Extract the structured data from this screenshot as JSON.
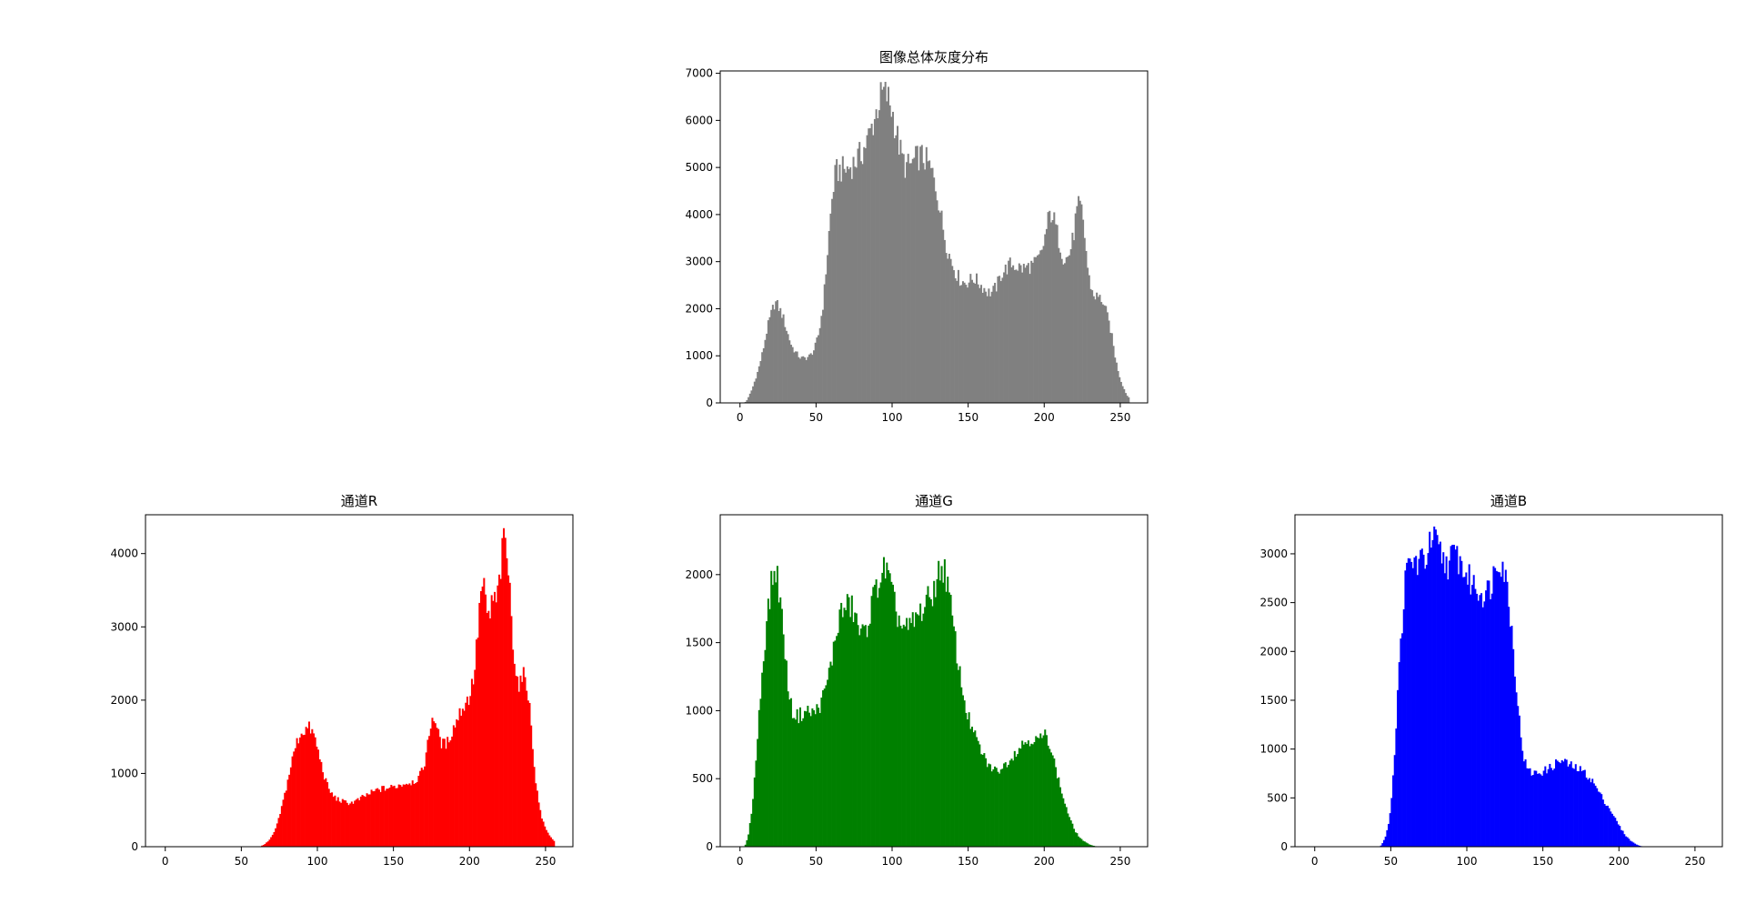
{
  "chart_data": [
    {
      "type": "bar",
      "title": "图像总体灰度分布",
      "xlabel": "",
      "ylabel": "",
      "color": "#808080",
      "xlim": [
        -13,
        268
      ],
      "ylim": [
        0,
        7050
      ],
      "xticks": [
        0,
        50,
        100,
        150,
        200,
        250
      ],
      "yticks": [
        0,
        1000,
        2000,
        3000,
        4000,
        5000,
        6000,
        7000
      ],
      "envelope": [
        [
          0,
          0
        ],
        [
          3,
          0
        ],
        [
          5,
          80
        ],
        [
          8,
          300
        ],
        [
          12,
          700
        ],
        [
          15,
          1100
        ],
        [
          18,
          1600
        ],
        [
          21,
          1950
        ],
        [
          23,
          2150
        ],
        [
          25,
          2050
        ],
        [
          28,
          1850
        ],
        [
          31,
          1500
        ],
        [
          34,
          1200
        ],
        [
          37,
          1050
        ],
        [
          40,
          950
        ],
        [
          43,
          950
        ],
        [
          46,
          1000
        ],
        [
          49,
          1150
        ],
        [
          52,
          1500
        ],
        [
          55,
          2200
        ],
        [
          57,
          3000
        ],
        [
          59,
          3800
        ],
        [
          61,
          4500
        ],
        [
          63,
          4900
        ],
        [
          66,
          4950
        ],
        [
          70,
          4950
        ],
        [
          75,
          5100
        ],
        [
          80,
          5300
        ],
        [
          84,
          5600
        ],
        [
          88,
          6000
        ],
        [
          91,
          6350
        ],
        [
          94,
          6600
        ],
        [
          97,
          6500
        ],
        [
          100,
          6200
        ],
        [
          103,
          5700
        ],
        [
          106,
          5250
        ],
        [
          109,
          5000
        ],
        [
          112,
          5050
        ],
        [
          115,
          5150
        ],
        [
          118,
          5250
        ],
        [
          121,
          5200
        ],
        [
          124,
          5050
        ],
        [
          127,
          4800
        ],
        [
          130,
          4400
        ],
        [
          133,
          3800
        ],
        [
          136,
          3300
        ],
        [
          139,
          3000
        ],
        [
          142,
          2750
        ],
        [
          145,
          2600
        ],
        [
          148,
          2550
        ],
        [
          151,
          2600
        ],
        [
          154,
          2650
        ],
        [
          157,
          2550
        ],
        [
          160,
          2450
        ],
        [
          163,
          2350
        ],
        [
          166,
          2350
        ],
        [
          169,
          2500
        ],
        [
          172,
          2750
        ],
        [
          175,
          2850
        ],
        [
          178,
          2950
        ],
        [
          182,
          2900
        ],
        [
          186,
          2850
        ],
        [
          190,
          2900
        ],
        [
          194,
          2950
        ],
        [
          198,
          3150
        ],
        [
          201,
          3600
        ],
        [
          203,
          3950
        ],
        [
          205,
          4050
        ],
        [
          207,
          3800
        ],
        [
          210,
          3400
        ],
        [
          213,
          3050
        ],
        [
          216,
          3100
        ],
        [
          219,
          3500
        ],
        [
          221,
          4000
        ],
        [
          223,
          4200
        ],
        [
          225,
          4000
        ],
        [
          227,
          3400
        ],
        [
          229,
          2700
        ],
        [
          232,
          2300
        ],
        [
          235,
          2250
        ],
        [
          238,
          2200
        ],
        [
          241,
          1900
        ],
        [
          244,
          1500
        ],
        [
          247,
          900
        ],
        [
          250,
          500
        ],
        [
          253,
          250
        ],
        [
          255,
          120
        ]
      ]
    },
    {
      "type": "bar",
      "title": "通道R",
      "xlabel": "",
      "ylabel": "",
      "color": "#ff0000",
      "xlim": [
        -13,
        268
      ],
      "ylim": [
        0,
        4530
      ],
      "xticks": [
        0,
        50,
        100,
        150,
        200,
        250
      ],
      "yticks": [
        0,
        1000,
        2000,
        3000,
        4000
      ],
      "envelope": [
        [
          0,
          0
        ],
        [
          62,
          0
        ],
        [
          65,
          30
        ],
        [
          68,
          80
        ],
        [
          71,
          170
        ],
        [
          74,
          330
        ],
        [
          77,
          580
        ],
        [
          80,
          850
        ],
        [
          83,
          1150
        ],
        [
          86,
          1400
        ],
        [
          89,
          1550
        ],
        [
          92,
          1600
        ],
        [
          95,
          1620
        ],
        [
          98,
          1500
        ],
        [
          101,
          1250
        ],
        [
          104,
          1000
        ],
        [
          107,
          800
        ],
        [
          110,
          700
        ],
        [
          113,
          650
        ],
        [
          116,
          620
        ],
        [
          119,
          600
        ],
        [
          122,
          600
        ],
        [
          125,
          620
        ],
        [
          128,
          650
        ],
        [
          131,
          690
        ],
        [
          134,
          720
        ],
        [
          137,
          750
        ],
        [
          140,
          780
        ],
        [
          143,
          790
        ],
        [
          146,
          800
        ],
        [
          149,
          810
        ],
        [
          152,
          830
        ],
        [
          155,
          850
        ],
        [
          158,
          870
        ],
        [
          161,
          880
        ],
        [
          164,
          900
        ],
        [
          167,
          950
        ],
        [
          170,
          1100
        ],
        [
          173,
          1450
        ],
        [
          175,
          1750
        ],
        [
          177,
          1780
        ],
        [
          179,
          1550
        ],
        [
          182,
          1400
        ],
        [
          185,
          1400
        ],
        [
          188,
          1550
        ],
        [
          191,
          1700
        ],
        [
          194,
          1850
        ],
        [
          197,
          1950
        ],
        [
          200,
          2050
        ],
        [
          203,
          2350
        ],
        [
          205,
          2800
        ],
        [
          207,
          3400
        ],
        [
          209,
          3600
        ],
        [
          211,
          3200
        ],
        [
          213,
          3100
        ],
        [
          215,
          3400
        ],
        [
          217,
          3300
        ],
        [
          219,
          3500
        ],
        [
          221,
          3900
        ],
        [
          223,
          4250
        ],
        [
          225,
          3900
        ],
        [
          227,
          3300
        ],
        [
          229,
          2700
        ],
        [
          231,
          2300
        ],
        [
          233,
          2200
        ],
        [
          235,
          2300
        ],
        [
          237,
          2350
        ],
        [
          239,
          2000
        ],
        [
          241,
          1500
        ],
        [
          243,
          1000
        ],
        [
          245,
          650
        ],
        [
          248,
          350
        ],
        [
          251,
          200
        ],
        [
          254,
          120
        ],
        [
          255,
          80
        ]
      ]
    },
    {
      "type": "bar",
      "title": "通道G",
      "xlabel": "",
      "ylabel": "",
      "color": "#008000",
      "xlim": [
        -13,
        268
      ],
      "ylim": [
        0,
        2440
      ],
      "xticks": [
        0,
        50,
        100,
        150,
        200,
        250
      ],
      "yticks": [
        0,
        500,
        1000,
        1500,
        2000
      ],
      "envelope": [
        [
          0,
          0
        ],
        [
          3,
          0
        ],
        [
          5,
          60
        ],
        [
          7,
          200
        ],
        [
          9,
          420
        ],
        [
          11,
          720
        ],
        [
          13,
          1050
        ],
        [
          15,
          1350
        ],
        [
          17,
          1600
        ],
        [
          19,
          1800
        ],
        [
          21,
          1950
        ],
        [
          23,
          2050
        ],
        [
          25,
          1950
        ],
        [
          27,
          1750
        ],
        [
          29,
          1500
        ],
        [
          31,
          1250
        ],
        [
          33,
          1050
        ],
        [
          35,
          980
        ],
        [
          38,
          960
        ],
        [
          41,
          980
        ],
        [
          44,
          1000
        ],
        [
          47,
          980
        ],
        [
          50,
          1000
        ],
        [
          53,
          1050
        ],
        [
          56,
          1150
        ],
        [
          59,
          1300
        ],
        [
          62,
          1480
        ],
        [
          64,
          1620
        ],
        [
          66,
          1720
        ],
        [
          69,
          1750
        ],
        [
          72,
          1780
        ],
        [
          75,
          1720
        ],
        [
          78,
          1600
        ],
        [
          81,
          1550
        ],
        [
          84,
          1650
        ],
        [
          87,
          1800
        ],
        [
          90,
          1920
        ],
        [
          93,
          2000
        ],
        [
          96,
          2050
        ],
        [
          99,
          1900
        ],
        [
          102,
          1750
        ],
        [
          105,
          1650
        ],
        [
          108,
          1600
        ],
        [
          111,
          1600
        ],
        [
          114,
          1650
        ],
        [
          117,
          1700
        ],
        [
          120,
          1750
        ],
        [
          123,
          1800
        ],
        [
          126,
          1850
        ],
        [
          129,
          1950
        ],
        [
          132,
          2050
        ],
        [
          134,
          2050
        ],
        [
          136,
          1950
        ],
        [
          138,
          1800
        ],
        [
          141,
          1550
        ],
        [
          144,
          1300
        ],
        [
          147,
          1100
        ],
        [
          150,
          950
        ],
        [
          153,
          850
        ],
        [
          156,
          770
        ],
        [
          159,
          690
        ],
        [
          162,
          620
        ],
        [
          165,
          580
        ],
        [
          168,
          560
        ],
        [
          171,
          570
        ],
        [
          174,
          600
        ],
        [
          177,
          640
        ],
        [
          180,
          680
        ],
        [
          183,
          720
        ],
        [
          186,
          760
        ],
        [
          189,
          780
        ],
        [
          192,
          790
        ],
        [
          195,
          780
        ],
        [
          198,
          800
        ],
        [
          201,
          820
        ],
        [
          203,
          780
        ],
        [
          205,
          700
        ],
        [
          208,
          550
        ],
        [
          211,
          420
        ],
        [
          214,
          300
        ],
        [
          217,
          200
        ],
        [
          220,
          120
        ],
        [
          223,
          70
        ],
        [
          226,
          40
        ],
        [
          229,
          20
        ],
        [
          232,
          8
        ],
        [
          235,
          0
        ]
      ]
    },
    {
      "type": "bar",
      "title": "通道B",
      "xlabel": "",
      "ylabel": "",
      "color": "#0000ff",
      "xlim": [
        -13,
        268
      ],
      "ylim": [
        0,
        3400
      ],
      "xticks": [
        0,
        50,
        100,
        150,
        200,
        250
      ],
      "yticks": [
        0,
        500,
        1000,
        1500,
        2000,
        2500,
        3000
      ],
      "envelope": [
        [
          0,
          0
        ],
        [
          43,
          0
        ],
        [
          45,
          50
        ],
        [
          47,
          120
        ],
        [
          49,
          280
        ],
        [
          51,
          600
        ],
        [
          53,
          1100
        ],
        [
          55,
          1700
        ],
        [
          57,
          2200
        ],
        [
          59,
          2650
        ],
        [
          61,
          2850
        ],
        [
          63,
          2900
        ],
        [
          66,
          2920
        ],
        [
          69,
          2900
        ],
        [
          72,
          2950
        ],
        [
          75,
          3050
        ],
        [
          78,
          3150
        ],
        [
          81,
          3050
        ],
        [
          84,
          2950
        ],
        [
          87,
          2900
        ],
        [
          90,
          2950
        ],
        [
          93,
          3000
        ],
        [
          96,
          2900
        ],
        [
          99,
          2800
        ],
        [
          102,
          2720
        ],
        [
          105,
          2680
        ],
        [
          108,
          2620
        ],
        [
          111,
          2600
        ],
        [
          114,
          2620
        ],
        [
          117,
          2750
        ],
        [
          119,
          2900
        ],
        [
          121,
          2980
        ],
        [
          123,
          2920
        ],
        [
          125,
          2800
        ],
        [
          127,
          2600
        ],
        [
          129,
          2300
        ],
        [
          131,
          1950
        ],
        [
          133,
          1550
        ],
        [
          135,
          1200
        ],
        [
          137,
          950
        ],
        [
          139,
          820
        ],
        [
          141,
          770
        ],
        [
          144,
          750
        ],
        [
          147,
          760
        ],
        [
          150,
          770
        ],
        [
          153,
          790
        ],
        [
          156,
          820
        ],
        [
          159,
          860
        ],
        [
          162,
          880
        ],
        [
          165,
          860
        ],
        [
          168,
          830
        ],
        [
          171,
          810
        ],
        [
          174,
          790
        ],
        [
          177,
          760
        ],
        [
          180,
          720
        ],
        [
          183,
          660
        ],
        [
          186,
          580
        ],
        [
          189,
          500
        ],
        [
          192,
          430
        ],
        [
          195,
          360
        ],
        [
          198,
          270
        ],
        [
          201,
          190
        ],
        [
          204,
          120
        ],
        [
          207,
          70
        ],
        [
          210,
          35
        ],
        [
          213,
          12
        ],
        [
          216,
          0
        ]
      ]
    }
  ]
}
